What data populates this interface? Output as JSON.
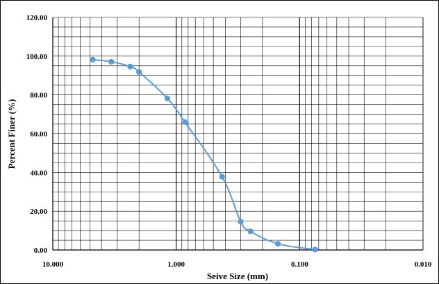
{
  "chart_data": {
    "type": "line",
    "title": "",
    "xlabel": "Seive Size (mm)",
    "ylabel": "Percent Finer (%)",
    "x_scale": "log",
    "x_reversed": true,
    "xlim": [
      10,
      0.01
    ],
    "ylim": [
      0,
      120
    ],
    "grid": true,
    "x_tick_labels": [
      "10.000",
      "1.000",
      "0.100",
      "0.010"
    ],
    "y_tick_labels": [
      "0.00",
      "20.00",
      "40.00",
      "60.00",
      "80.00",
      "100.00",
      "120.00"
    ],
    "series": [
      {
        "color": "#5b9bd5",
        "x": [
          4.75,
          3.35,
          2.36,
          2.0,
          1.18,
          0.85,
          0.425,
          0.3,
          0.25,
          0.15,
          0.075
        ],
        "y": [
          98.2,
          97.1,
          94.6,
          91.8,
          78.2,
          66.0,
          37.8,
          14.6,
          9.6,
          3.2,
          0.2
        ]
      }
    ]
  }
}
